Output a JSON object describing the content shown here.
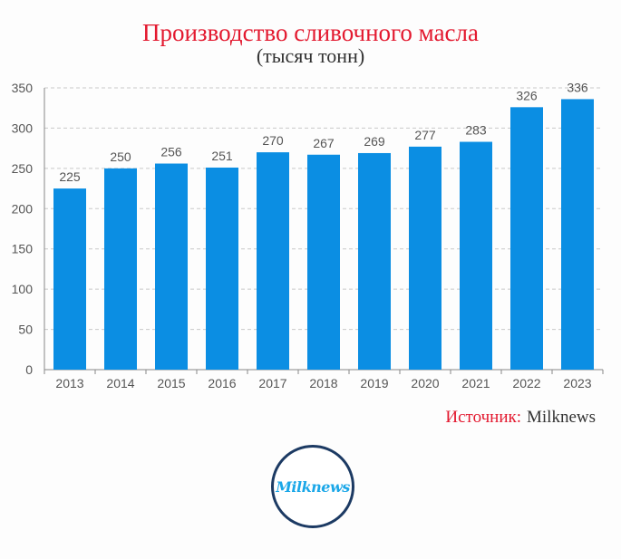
{
  "chart_data": {
    "type": "bar",
    "title": "Производство сливочного масла",
    "subtitle": "(тысяч тонн)",
    "categories": [
      "2013",
      "2014",
      "2015",
      "2016",
      "2017",
      "2018",
      "2019",
      "2020",
      "2021",
      "2022",
      "2023"
    ],
    "values": [
      225,
      250,
      256,
      251,
      270,
      267,
      269,
      277,
      283,
      326,
      336
    ],
    "ylim": [
      0,
      350
    ],
    "yticks": [
      0,
      50,
      100,
      150,
      200,
      250,
      300,
      350
    ],
    "grid": true,
    "bar_color": "#0b8ee3"
  },
  "source": {
    "label": "Источник:",
    "name": "Milknews"
  },
  "logo": {
    "text": "Milknews"
  },
  "colors": {
    "title": "#e3192f",
    "logo_ring": "#1c3a63",
    "logo_text": "#1aa7e8"
  }
}
